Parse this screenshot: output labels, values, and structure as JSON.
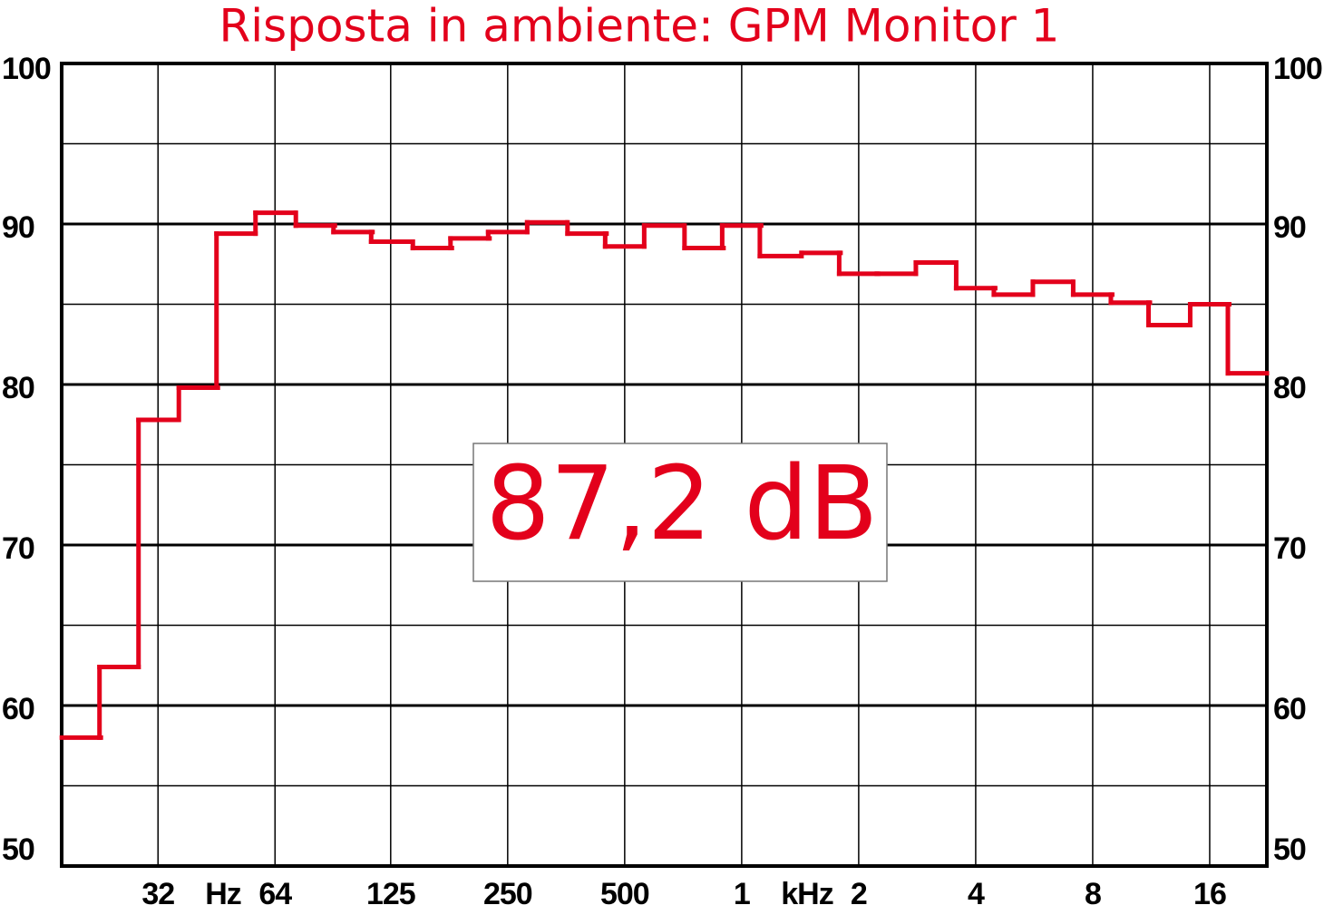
{
  "chart_data": {
    "type": "step",
    "title": "Risposta in ambiente: GPM Monitor 1",
    "annotation": "87,2 dB",
    "x_units": [
      "Hz",
      "kHz"
    ],
    "x": [
      20,
      25,
      31.5,
      40,
      50,
      63,
      80,
      100,
      125,
      160,
      200,
      250,
      315,
      400,
      500,
      630,
      800,
      1000,
      1250,
      1600,
      2000,
      2500,
      3150,
      4000,
      5000,
      6300,
      8000,
      10000,
      12500,
      16000,
      20000
    ],
    "series": [
      {
        "name": "GPM Monitor 1",
        "color": "#e3001b",
        "values": [
          58.0,
          62.4,
          77.8,
          79.8,
          89.4,
          90.7,
          89.9,
          89.5,
          88.9,
          88.5,
          89.1,
          89.5,
          90.1,
          89.4,
          88.6,
          89.9,
          88.5,
          89.9,
          88.0,
          88.2,
          86.9,
          86.9,
          87.6,
          86.0,
          85.6,
          86.4,
          85.6,
          85.1,
          83.7,
          85.0,
          80.7
        ]
      }
    ],
    "xscale": "log",
    "xlim": [
      17.8,
      22449
    ],
    "xticks": [
      {
        "value": 31.5,
        "label": "32"
      },
      {
        "value": 63,
        "label": "64"
      },
      125,
      250,
      500,
      {
        "value": 1000,
        "label": "1"
      },
      {
        "value": 2000,
        "label": "2"
      },
      {
        "value": 4000,
        "label": "4"
      },
      {
        "value": 8000,
        "label": "8"
      },
      {
        "value": 16000,
        "label": "16"
      }
    ],
    "ylim": [
      50,
      100
    ],
    "yticks": [
      50,
      60,
      70,
      80,
      90,
      100
    ],
    "yticks_minor": [
      55,
      65,
      75,
      85,
      95
    ],
    "grid": true
  }
}
